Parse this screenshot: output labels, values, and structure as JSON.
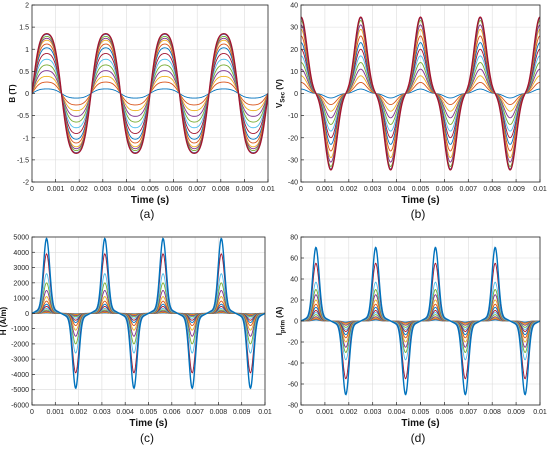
{
  "chart_data": [
    {
      "id": "a",
      "panel_label": "(a)",
      "type": "line",
      "title": "",
      "xlabel": "Time (s)",
      "ylabel": "B (T)",
      "ylabel_sub": "",
      "ylabel_tail": "",
      "xlim": [
        0,
        0.01
      ],
      "ylim": [
        -2,
        2
      ],
      "xticks": [
        "0",
        "0.001",
        "0.002",
        "0.003",
        "0.004",
        "0.005",
        "0.006",
        "0.007",
        "0.008",
        "0.009",
        "0.01"
      ],
      "yticks": [
        "-2",
        "-1.5",
        "-1",
        "-0.5",
        "0",
        "0.5",
        "1",
        "1.5",
        "2"
      ],
      "grid": true,
      "legend": "none",
      "waveform": "flux",
      "frequency_hz": 400,
      "series_peaks": [
        0.12,
        0.3,
        0.45,
        0.6,
        0.75,
        0.9,
        1.05,
        1.2,
        1.3,
        1.4,
        1.45,
        1.5,
        1.55,
        1.57
      ]
    },
    {
      "id": "b",
      "panel_label": "(b)",
      "type": "line",
      "title": "",
      "xlabel": "Time (s)",
      "ylabel": "V",
      "ylabel_sub": "Sec",
      "ylabel_tail": " (V)",
      "xlim": [
        0,
        0.01
      ],
      "ylim": [
        -40,
        40
      ],
      "xticks": [
        "0",
        "0.001",
        "0.002",
        "0.003",
        "0.004",
        "0.005",
        "0.006",
        "0.007",
        "0.008",
        "0.009",
        "0.01"
      ],
      "yticks": [
        "-40",
        "-30",
        "-20",
        "-10",
        "0",
        "10",
        "20",
        "30",
        "40"
      ],
      "grid": true,
      "legend": "none",
      "waveform": "voltage",
      "frequency_hz": 400,
      "series_peaks": [
        2,
        5,
        8,
        11,
        14,
        17,
        20,
        23,
        26,
        29,
        31,
        33,
        34,
        34.5
      ]
    },
    {
      "id": "c",
      "panel_label": "(c)",
      "type": "line",
      "title": "",
      "xlabel": "Time (s)",
      "ylabel": "H (A/m)",
      "ylabel_sub": "",
      "ylabel_tail": "",
      "xlim": [
        0,
        0.01
      ],
      "ylim": [
        -6000,
        5000
      ],
      "xticks": [
        "0",
        "0.001",
        "0.002",
        "0.003",
        "0.004",
        "0.005",
        "0.006",
        "0.007",
        "0.008",
        "0.009",
        "0.01"
      ],
      "yticks": [
        "-6000",
        "-5000",
        "-4000",
        "-3000",
        "-2000",
        "-1000",
        "0",
        "1000",
        "2000",
        "3000",
        "4000",
        "5000"
      ],
      "grid": true,
      "legend": "none",
      "waveform": "field",
      "frequency_hz": 400,
      "series_peaks": [
        30,
        60,
        100,
        150,
        220,
        320,
        450,
        600,
        800,
        1100,
        1500,
        2000,
        2600,
        3900,
        4900
      ]
    },
    {
      "id": "d",
      "panel_label": "(d)",
      "type": "line",
      "title": "",
      "xlabel": "Time (s)",
      "ylabel": "I",
      "ylabel_sub": "prim",
      "ylabel_tail": " (A)",
      "xlim": [
        0,
        0.01
      ],
      "ylim": [
        -80,
        80
      ],
      "xticks": [
        "0",
        "0.001",
        "0.002",
        "0.003",
        "0.004",
        "0.005",
        "0.006",
        "0.007",
        "0.008",
        "0.009",
        "0.01"
      ],
      "yticks": [
        "-80",
        "-60",
        "-40",
        "-20",
        "0",
        "20",
        "40",
        "60",
        "80"
      ],
      "grid": true,
      "legend": "none",
      "waveform": "current",
      "frequency_hz": 400,
      "series_peaks": [
        1,
        2,
        3,
        4,
        6,
        8,
        10,
        13,
        16,
        20,
        25,
        30,
        37,
        55,
        70
      ]
    }
  ],
  "series_colors": [
    "#0072BD",
    "#D95319",
    "#EDB120",
    "#7E2F8E",
    "#77AC30",
    "#4DBEEE",
    "#A2142F"
  ]
}
